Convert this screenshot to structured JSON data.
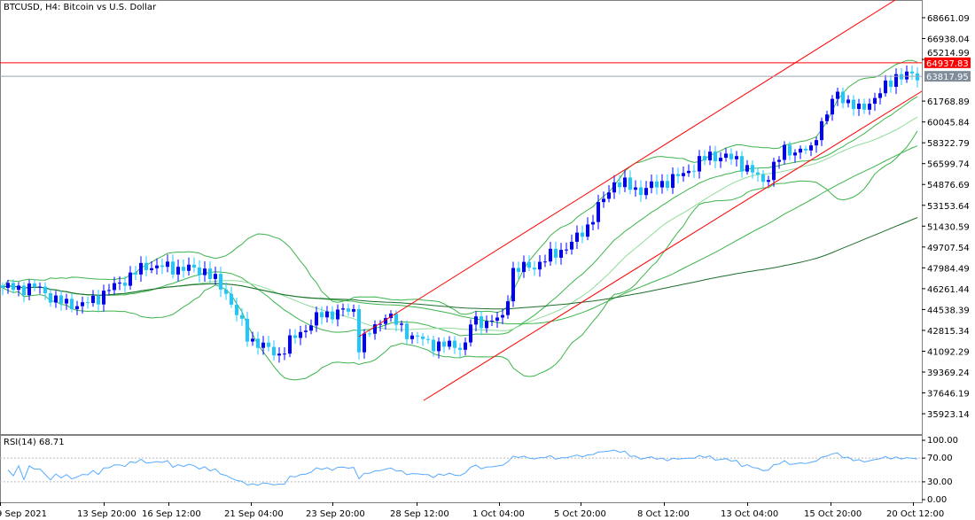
{
  "header": {
    "title": "BTCUSD, H4:  Bitcoin vs U.S. Dollar"
  },
  "rsi": {
    "label": "RSI(14) 68.71",
    "levels": [
      "100.00",
      "70.00",
      "30.00",
      "0.00"
    ]
  },
  "colors": {
    "bull": "#0000ff",
    "bear": "#1ec8ff",
    "bands": "#3cb44b",
    "ma_light": "#8fdc9a",
    "ma_dark": "#1e6e2d",
    "channel": "#ff0000",
    "rsi": "#55aaff",
    "ask_label": "#ff0000",
    "bid_label": "#7f8c99"
  },
  "chart_data": {
    "type": "candlestick",
    "title": "BTCUSD, H4:  Bitcoin vs U.S. Dollar",
    "y_ticks": [
      "68661.09",
      "66938.04",
      "65214.99",
      "61768.89",
      "60045.84",
      "58322.79",
      "56599.74",
      "54876.69",
      "53153.64",
      "51430.59",
      "49707.54",
      "47984.49",
      "46261.44",
      "44538.39",
      "42815.34",
      "41092.29",
      "39369.24",
      "37646.19",
      "35923.14"
    ],
    "ylim": [
      35000,
      70400
    ],
    "x_ticks": [
      "9 Sep 2021",
      "13 Sep 20:00",
      "16 Sep 12:00",
      "21 Sep 04:00",
      "23 Sep 20:00",
      "28 Sep 12:00",
      "1 Oct 04:00",
      "5 Oct 20:00",
      "8 Oct 12:00",
      "13 Oct 04:00",
      "15 Oct 20:00",
      "20 Oct 12:00"
    ],
    "price_lines": {
      "ask": "64937.83",
      "bid": "63817.95"
    },
    "close_keypoints": [
      [
        0,
        46326
      ],
      [
        7,
        46326
      ],
      [
        10,
        45228
      ],
      [
        15,
        44861
      ],
      [
        18,
        45594
      ],
      [
        27,
        48157
      ],
      [
        38,
        47790
      ],
      [
        42,
        45960
      ],
      [
        46,
        42298
      ],
      [
        50,
        41200
      ],
      [
        52,
        40834
      ],
      [
        55,
        42298
      ],
      [
        60,
        44129
      ],
      [
        66,
        44495
      ],
      [
        67,
        41566
      ],
      [
        72,
        44129
      ],
      [
        77,
        42298
      ],
      [
        82,
        41566
      ],
      [
        87,
        41566
      ],
      [
        88,
        43397
      ],
      [
        94,
        43763
      ],
      [
        96,
        47790
      ],
      [
        100,
        48157
      ],
      [
        107,
        49987
      ],
      [
        110,
        51452
      ],
      [
        115,
        55114
      ],
      [
        120,
        54382
      ],
      [
        127,
        55480
      ],
      [
        133,
        57310
      ],
      [
        138,
        56945
      ],
      [
        143,
        55114
      ],
      [
        147,
        57677
      ],
      [
        152,
        57677
      ],
      [
        153,
        59141
      ],
      [
        157,
        62437
      ],
      [
        161,
        60972
      ],
      [
        165,
        62437
      ],
      [
        168,
        63901
      ],
      [
        172,
        63818
      ]
    ],
    "rsi_value": 68.71
  }
}
